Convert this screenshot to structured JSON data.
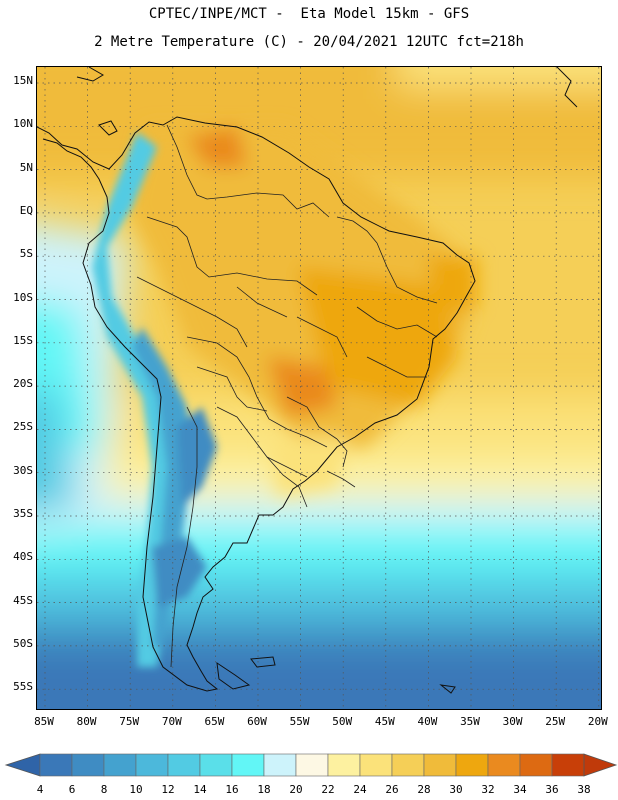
{
  "title_line1": "CPTEC/INPE/MCT -  Eta Model 15km - GFS",
  "title_line2": "2 Metre Temperature (C) - 20/04/2021 12UTC fct=218h",
  "lat_labels": [
    "15N",
    "10N",
    "5N",
    "EQ",
    "5S",
    "10S",
    "15S",
    "20S",
    "25S",
    "30S",
    "35S",
    "40S",
    "45S",
    "50S",
    "55S"
  ],
  "lon_labels": [
    "85W",
    "80W",
    "75W",
    "70W",
    "65W",
    "60W",
    "55W",
    "50W",
    "45W",
    "40W",
    "35W",
    "30W",
    "25W",
    "20W"
  ],
  "colorbar": {
    "labels": [
      "4",
      "6",
      "8",
      "10",
      "12",
      "14",
      "16",
      "18",
      "20",
      "22",
      "24",
      "26",
      "28",
      "30",
      "32",
      "34",
      "36",
      "38"
    ],
    "colors": [
      "#3a78b8",
      "#3f8cc3",
      "#44a2cf",
      "#4cb8db",
      "#52cbe3",
      "#5adfe9",
      "#62f6f6",
      "#cdf3fb",
      "#fdf8e4",
      "#fdf1a0",
      "#fbe27a",
      "#f5cf57",
      "#f0bb3a",
      "#eea70f",
      "#ea8a1f",
      "#dd6a12",
      "#c83f08"
    ],
    "under_color": "#2f64a8",
    "over_color": "#c03a0a"
  }
}
